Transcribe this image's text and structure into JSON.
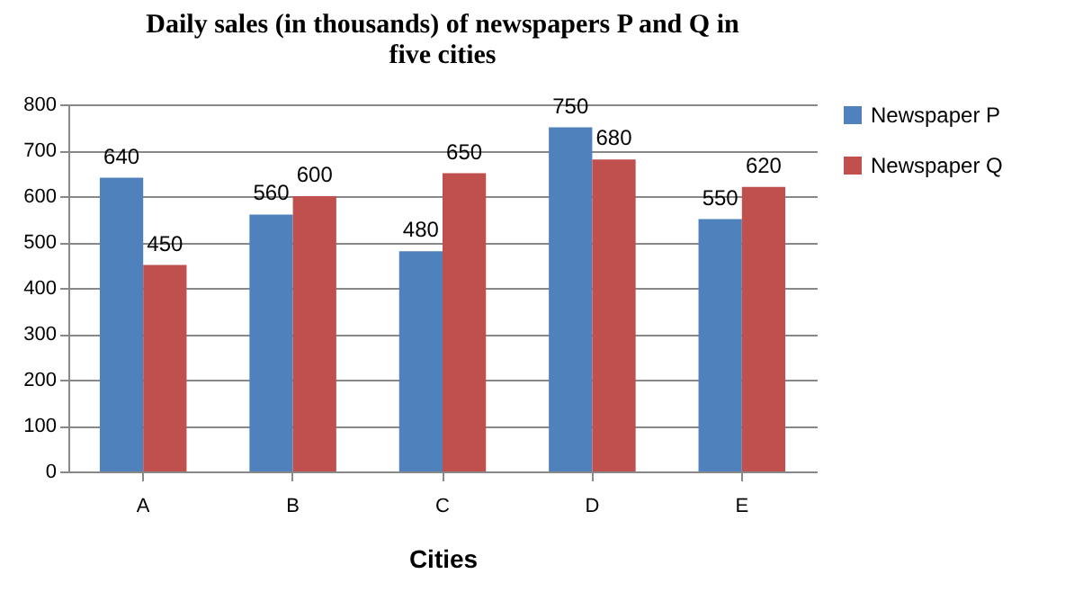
{
  "chart_data": {
    "type": "bar",
    "title": "Daily sales (in thousands) of newspapers P and Q in five cities",
    "xlabel": "Cities",
    "categories": [
      "A",
      "B",
      "C",
      "D",
      "E"
    ],
    "series": [
      {
        "name": "Newspaper P",
        "color": "#4f81bd",
        "values": [
          640,
          560,
          480,
          750,
          550
        ]
      },
      {
        "name": "Newspaper Q",
        "color": "#c0504d",
        "values": [
          450,
          600,
          650,
          680,
          620
        ]
      }
    ],
    "ylim": [
      0,
      800
    ],
    "yticks": [
      0,
      100,
      200,
      300,
      400,
      500,
      600,
      700,
      800
    ],
    "grid": "y",
    "legend": "right",
    "data_labels": true
  }
}
